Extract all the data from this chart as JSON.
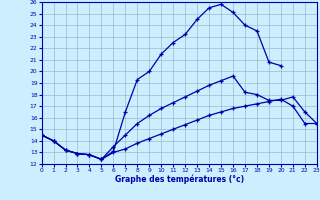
{
  "title": "Graphe des températures (°c)",
  "bg_color": "#cceeff",
  "line_color": "#0000aa",
  "grid_color": "#99bbcc",
  "xlim": [
    0,
    23
  ],
  "ylim": [
    12,
    26
  ],
  "yticks": [
    12,
    13,
    14,
    15,
    16,
    17,
    18,
    19,
    20,
    21,
    22,
    23,
    24,
    25,
    26
  ],
  "xticks": [
    0,
    1,
    2,
    3,
    4,
    5,
    6,
    7,
    8,
    9,
    10,
    11,
    12,
    13,
    14,
    15,
    16,
    17,
    18,
    19,
    20,
    21,
    22,
    23
  ],
  "line_upper_x": [
    0,
    1,
    2,
    3,
    4,
    5,
    6,
    7,
    8,
    9,
    10,
    11,
    12,
    13,
    14,
    15,
    16,
    17,
    18,
    19,
    20
  ],
  "line_upper_y": [
    14.5,
    14.0,
    13.2,
    12.9,
    12.8,
    12.4,
    13.1,
    16.5,
    19.3,
    20.0,
    21.5,
    22.5,
    23.2,
    24.5,
    25.5,
    25.8,
    25.1,
    24.0,
    23.5,
    20.8,
    20.5
  ],
  "line_mid_x": [
    0,
    1,
    2,
    3,
    4,
    5,
    6,
    7,
    8,
    9,
    10,
    11,
    12,
    13,
    14,
    15,
    16,
    17,
    18,
    19,
    20,
    21,
    22,
    23
  ],
  "line_mid_y": [
    14.5,
    14.0,
    13.2,
    12.9,
    12.8,
    12.4,
    13.5,
    14.5,
    15.5,
    16.2,
    16.8,
    17.3,
    17.8,
    18.3,
    18.8,
    19.2,
    19.6,
    18.2,
    18.0,
    17.5,
    17.5,
    17.8,
    16.5,
    15.5
  ],
  "line_low_x": [
    0,
    1,
    2,
    3,
    4,
    5,
    6,
    7,
    8,
    9,
    10,
    11,
    12,
    13,
    14,
    15,
    16,
    17,
    18,
    19,
    20,
    21,
    22,
    23
  ],
  "line_low_y": [
    14.5,
    14.0,
    13.2,
    12.9,
    12.8,
    12.4,
    13.0,
    13.3,
    13.8,
    14.2,
    14.6,
    15.0,
    15.4,
    15.8,
    16.2,
    16.5,
    16.8,
    17.0,
    17.2,
    17.4,
    17.6,
    17.0,
    15.5,
    15.5
  ]
}
